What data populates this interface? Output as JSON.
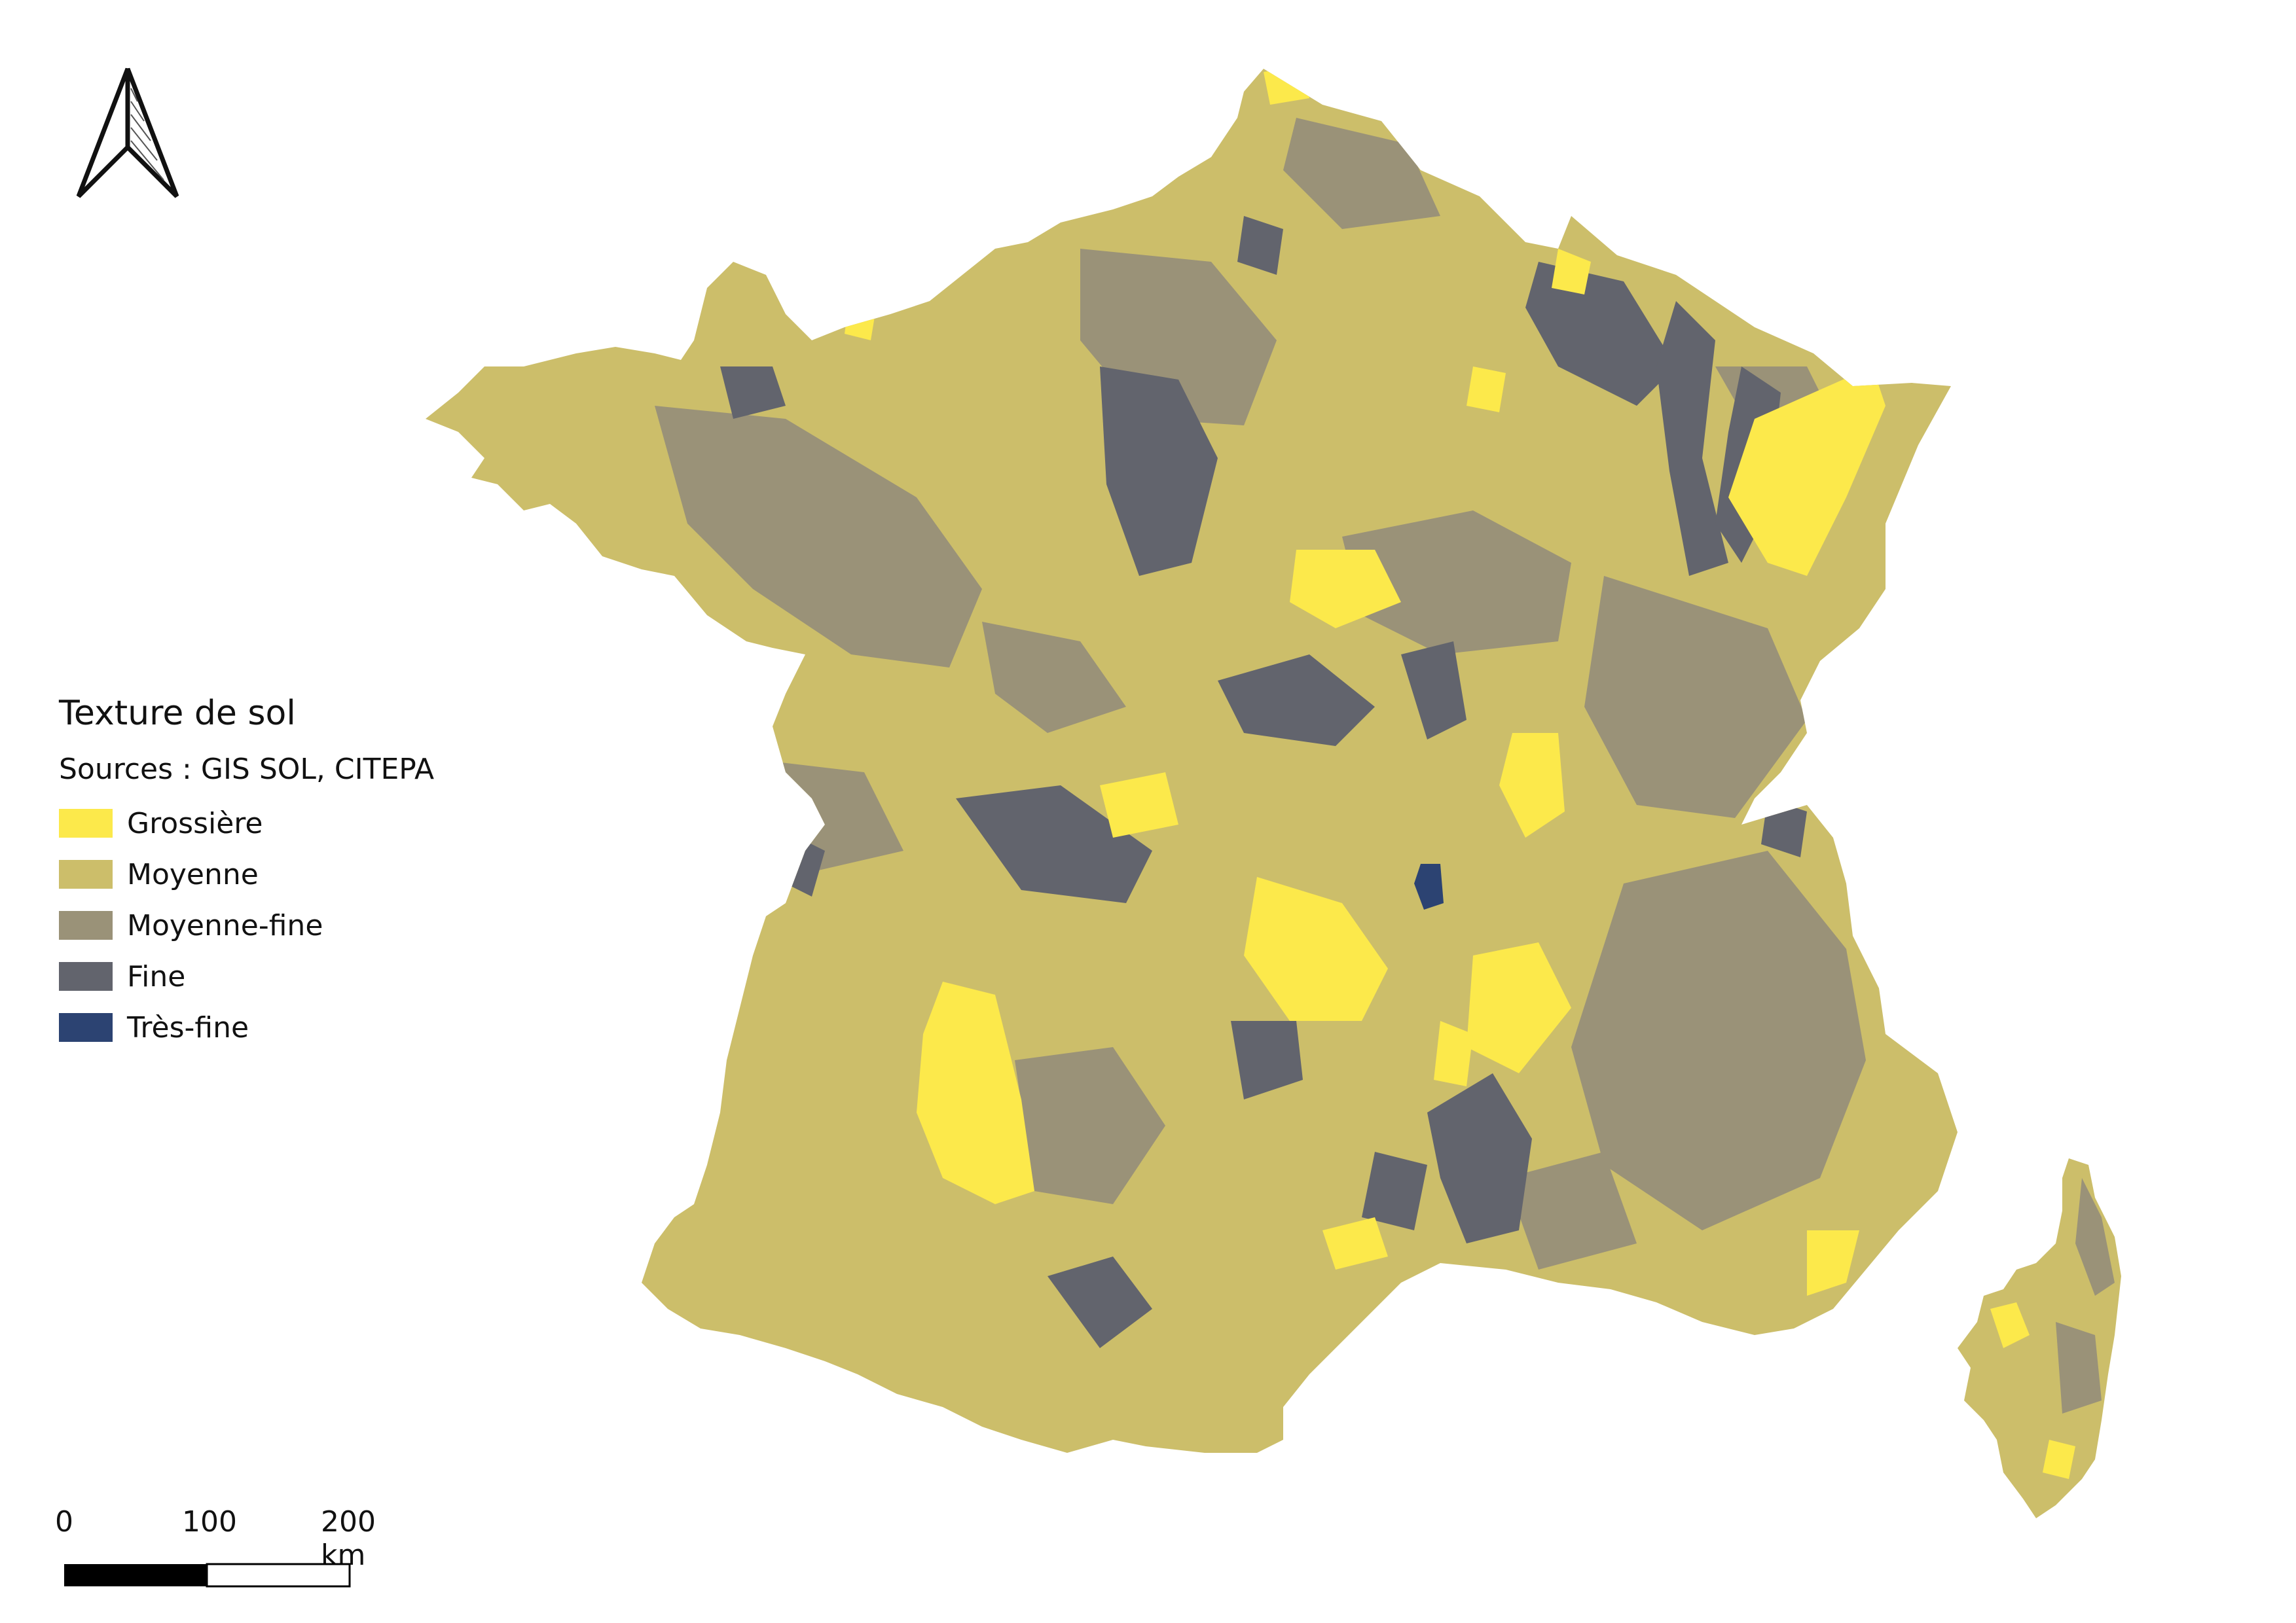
{
  "legend": {
    "title": "Texture de sol",
    "sources": "Sources : GIS SOL, CITEPA",
    "items": [
      {
        "label": "Grossière",
        "color": "#FCE94B"
      },
      {
        "label": "Moyenne",
        "color": "#CCBE6A"
      },
      {
        "label": "Moyenne-fine",
        "color": "#9A9278"
      },
      {
        "label": "Fine",
        "color": "#62646D"
      },
      {
        "label": "Très-fine",
        "color": "#2C4372"
      }
    ]
  },
  "scalebar": {
    "labels": [
      "0",
      "100",
      "200 km"
    ]
  },
  "north_arrow": {
    "icon": "north-arrow-icon"
  }
}
